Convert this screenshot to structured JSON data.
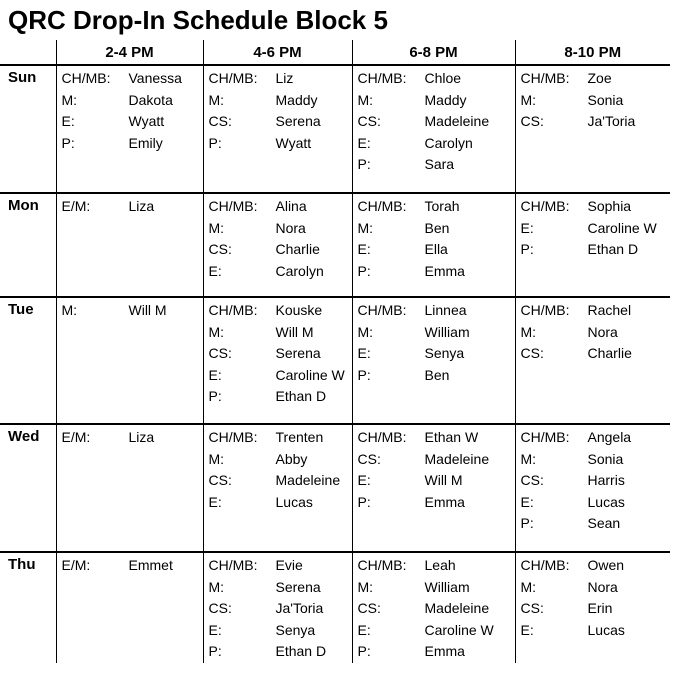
{
  "title": "QRC Drop-In Schedule Block 5",
  "colors": {
    "text": "#000000",
    "background": "#ffffff",
    "grid_line": "#000000"
  },
  "schedule": {
    "time_columns": [
      "2-4 PM",
      "4-6 PM",
      "6-8 PM",
      "8-10 PM"
    ],
    "rows": [
      {
        "day": "Sun",
        "cells": [
          [
            {
              "label": "CH/MB:",
              "name": "Vanessa"
            },
            {
              "label": "M:",
              "name": "Dakota"
            },
            {
              "label": "E:",
              "name": "Wyatt"
            },
            {
              "label": "P:",
              "name": "Emily"
            }
          ],
          [
            {
              "label": "CH/MB:",
              "name": "Liz"
            },
            {
              "label": "M:",
              "name": "Maddy"
            },
            {
              "label": "CS:",
              "name": "Serena"
            },
            {
              "label": "P:",
              "name": "Wyatt"
            }
          ],
          [
            {
              "label": "CH/MB:",
              "name": "Chloe"
            },
            {
              "label": "M:",
              "name": "Maddy"
            },
            {
              "label": "CS:",
              "name": "Madeleine"
            },
            {
              "label": "E:",
              "name": "Carolyn"
            },
            {
              "label": "P:",
              "name": "Sara"
            }
          ],
          [
            {
              "label": "CH/MB:",
              "name": "Zoe"
            },
            {
              "label": "M:",
              "name": "Sonia"
            },
            {
              "label": "CS:",
              "name": "Ja'Toria"
            }
          ]
        ]
      },
      {
        "day": "Mon",
        "cells": [
          [
            {
              "label": "E/M:",
              "name": "Liza"
            }
          ],
          [
            {
              "label": "CH/MB:",
              "name": "Alina"
            },
            {
              "label": "M:",
              "name": "Nora"
            },
            {
              "label": "CS:",
              "name": "Charlie"
            },
            {
              "label": "E:",
              "name": "Carolyn"
            }
          ],
          [
            {
              "label": "CH/MB:",
              "name": "Torah"
            },
            {
              "label": "M:",
              "name": "Ben"
            },
            {
              "label": "E:",
              "name": "Ella"
            },
            {
              "label": "P:",
              "name": "Emma"
            }
          ],
          [
            {
              "label": "CH/MB:",
              "name": "Sophia"
            },
            {
              "label": "E:",
              "name": "Caroline W"
            },
            {
              "label": "P:",
              "name": "Ethan D"
            }
          ]
        ]
      },
      {
        "day": "Tue",
        "cells": [
          [
            {
              "label": "M:",
              "name": "Will M"
            }
          ],
          [
            {
              "label": "CH/MB:",
              "name": "Kouske"
            },
            {
              "label": "M:",
              "name": "Will M"
            },
            {
              "label": "CS:",
              "name": "Serena"
            },
            {
              "label": "E:",
              "name": "Caroline W"
            },
            {
              "label": "P:",
              "name": "Ethan D"
            }
          ],
          [
            {
              "label": "CH/MB:",
              "name": "Linnea"
            },
            {
              "label": "M:",
              "name": "William"
            },
            {
              "label": "E:",
              "name": "Senya"
            },
            {
              "label": "P:",
              "name": "Ben"
            }
          ],
          [
            {
              "label": "CH/MB:",
              "name": "Rachel"
            },
            {
              "label": "M:",
              "name": "Nora"
            },
            {
              "label": "CS:",
              "name": "Charlie"
            }
          ]
        ]
      },
      {
        "day": "Wed",
        "cells": [
          [
            {
              "label": "E/M:",
              "name": "Liza"
            }
          ],
          [
            {
              "label": "CH/MB:",
              "name": "Trenten"
            },
            {
              "label": "M:",
              "name": "Abby"
            },
            {
              "label": "CS:",
              "name": "Madeleine"
            },
            {
              "label": "E:",
              "name": "Lucas"
            }
          ],
          [
            {
              "label": "CH/MB:",
              "name": "Ethan W"
            },
            {
              "label": "CS:",
              "name": "Madeleine"
            },
            {
              "label": "E:",
              "name": "Will M"
            },
            {
              "label": "P:",
              "name": "Emma"
            }
          ],
          [
            {
              "label": "CH/MB:",
              "name": "Angela"
            },
            {
              "label": "M:",
              "name": "Sonia"
            },
            {
              "label": "CS:",
              "name": "Harris"
            },
            {
              "label": "E:",
              "name": "Lucas"
            },
            {
              "label": "P:",
              "name": "Sean"
            }
          ]
        ]
      },
      {
        "day": "Thu",
        "cells": [
          [
            {
              "label": "E/M:",
              "name": "Emmet"
            }
          ],
          [
            {
              "label": "CH/MB:",
              "name": "Evie"
            },
            {
              "label": "M:",
              "name": "Serena"
            },
            {
              "label": "CS:",
              "name": "Ja'Toria"
            },
            {
              "label": "E:",
              "name": "Senya"
            },
            {
              "label": "P:",
              "name": "Ethan D"
            }
          ],
          [
            {
              "label": "CH/MB:",
              "name": "Leah"
            },
            {
              "label": "M:",
              "name": "William"
            },
            {
              "label": "CS:",
              "name": "Madeleine"
            },
            {
              "label": "E:",
              "name": "Caroline W"
            },
            {
              "label": "P:",
              "name": "Emma"
            }
          ],
          [
            {
              "label": "CH/MB:",
              "name": "Owen"
            },
            {
              "label": "M:",
              "name": "Nora"
            },
            {
              "label": "CS:",
              "name": "Erin"
            },
            {
              "label": "E:",
              "name": "Lucas"
            }
          ]
        ]
      }
    ]
  }
}
